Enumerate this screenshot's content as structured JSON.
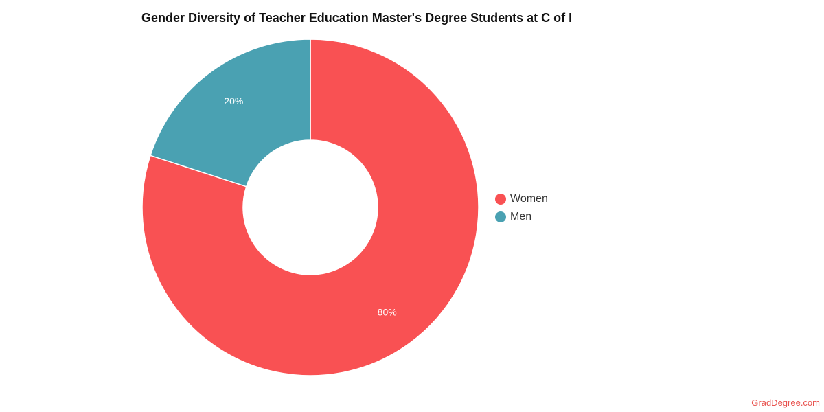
{
  "chart_data": {
    "type": "pie",
    "title": "Gender Diversity of Teacher Education Master's Degree Students at C of I",
    "categories": [
      "Women",
      "Men"
    ],
    "values": [
      80,
      20
    ],
    "labels": [
      "80%",
      "20%"
    ],
    "colors": [
      "#f95153",
      "#4aa1b2"
    ],
    "donut": true,
    "legend_position": "right"
  },
  "watermark": "GradDegree.com"
}
